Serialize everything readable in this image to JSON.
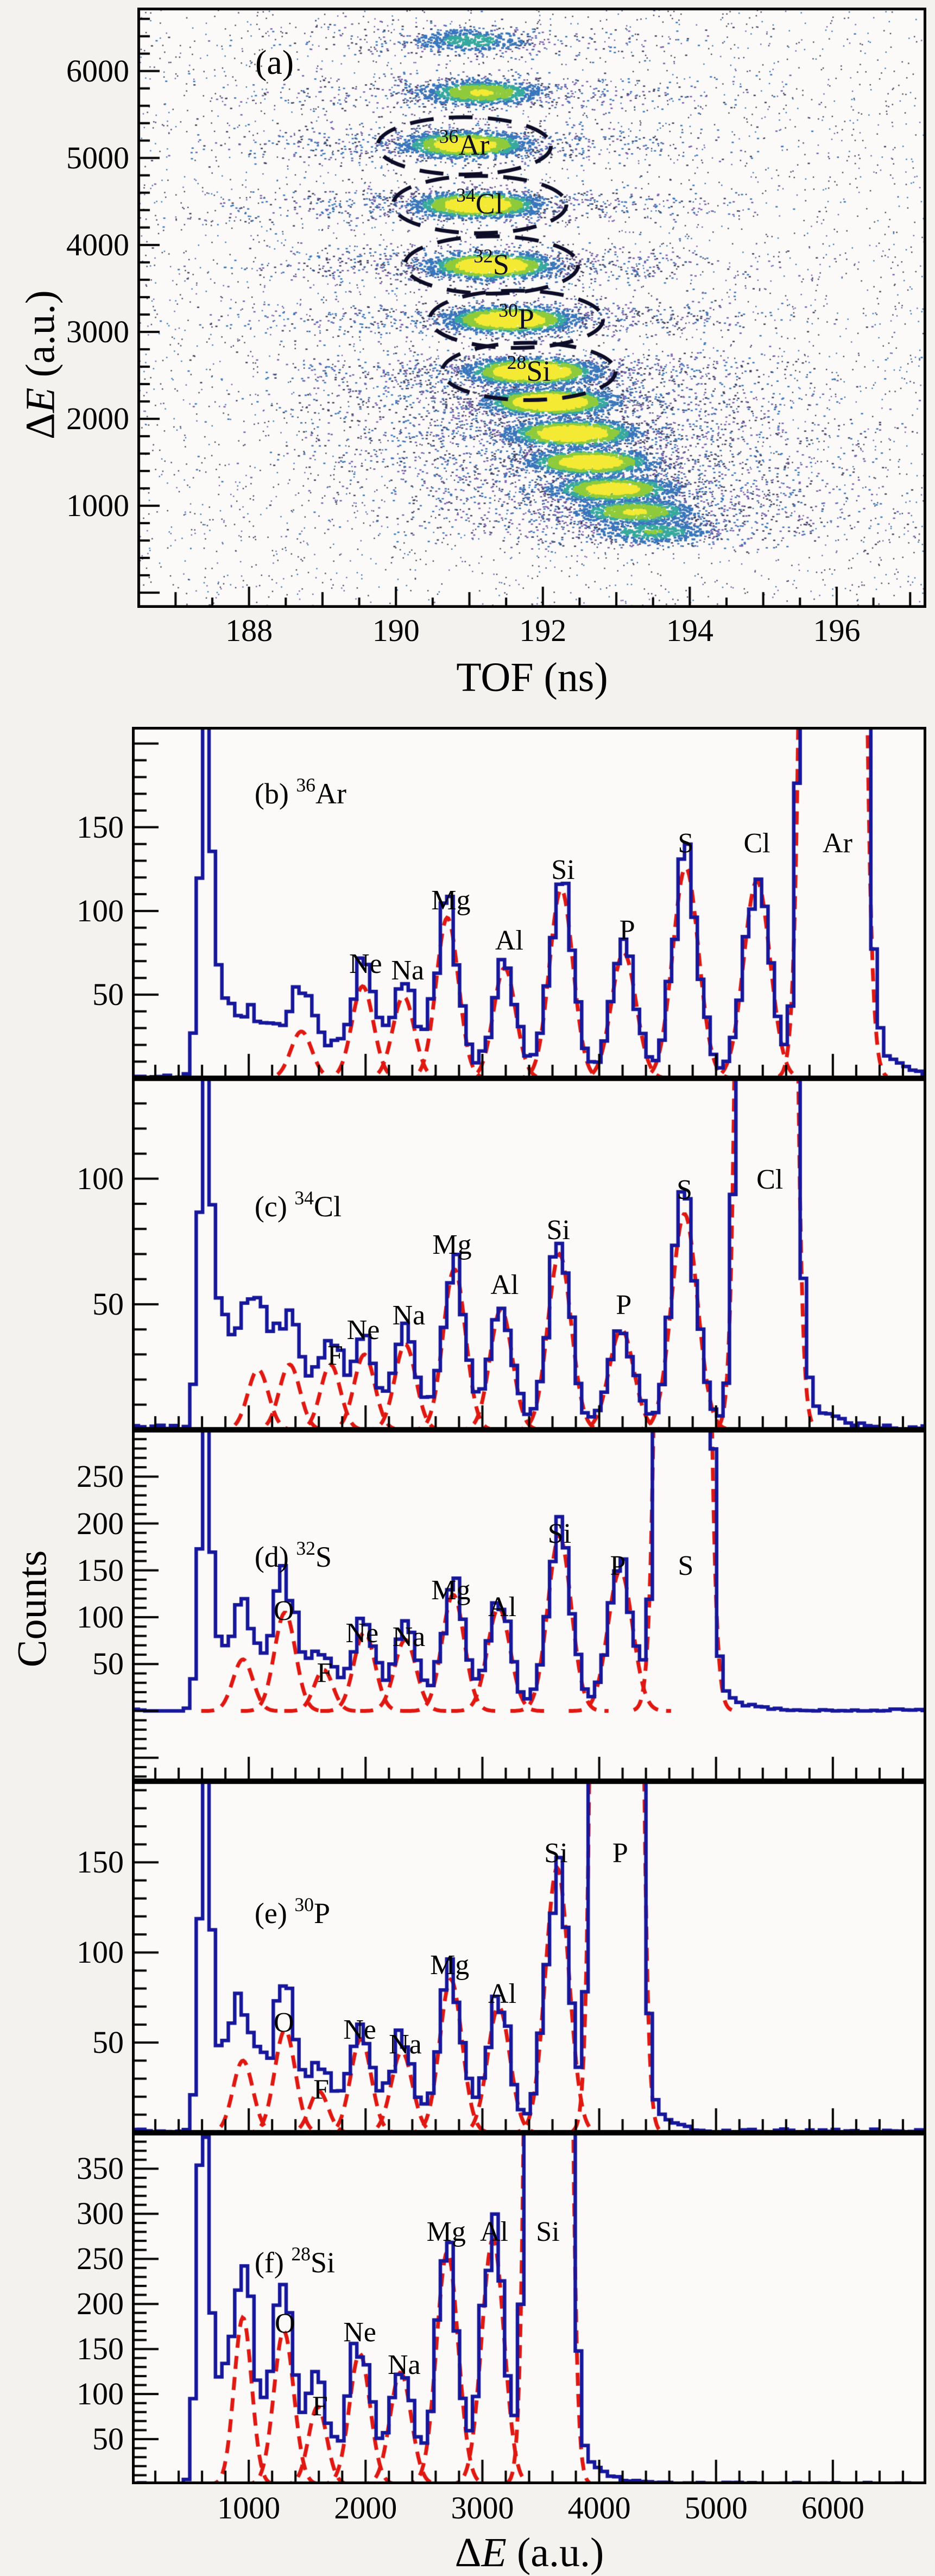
{
  "page": {
    "background": "#f3f2ef",
    "panel_background": "#fbfaf8"
  },
  "colors": {
    "histogram_line": "#17179b",
    "fit_line": "#e01812",
    "frame": "#000000",
    "dot_yellow": "#f4ea35",
    "dot_green": "#8fcb3c",
    "dot_teal": "#37a99e",
    "dot_blue": "#3a76bb",
    "dot_dark": "#42425f",
    "dot_purple": "#7a5fae",
    "ellipse": "#0d0d28"
  },
  "chart_data": {
    "panel_a": {
      "type": "heatmap",
      "tag": "(a)",
      "xlabel": "TOF (ns)",
      "ylabel_parts": {
        "delta": "Δ",
        "e": "E",
        "unit": " (a.u.)"
      },
      "xlim": [
        186.48,
        197.22
      ],
      "ylim": [
        -175,
        6730
      ],
      "xticks": [
        188,
        190,
        192,
        194,
        196
      ],
      "yticks": [
        1000,
        2000,
        3000,
        4000,
        5000,
        6000
      ],
      "tag_pos": {
        "tof": 188.1,
        "de": 6250
      },
      "bands": [
        {
          "de": 6350,
          "tof": 191.0,
          "intensity": 0.3
        },
        {
          "de": 5750,
          "tof": 191.15,
          "intensity": 0.55
        },
        {
          "de": 5150,
          "tof": 190.95,
          "intensity": 0.8
        },
        {
          "de": 4460,
          "tof": 191.1,
          "intensity": 0.85
        },
        {
          "de": 3760,
          "tof": 191.3,
          "intensity": 0.9
        },
        {
          "de": 3140,
          "tof": 191.55,
          "intensity": 0.9
        },
        {
          "de": 2540,
          "tof": 191.85,
          "intensity": 1.0
        },
        {
          "de": 2190,
          "tof": 192.1,
          "intensity": 0.95
        },
        {
          "de": 1830,
          "tof": 192.4,
          "intensity": 0.9
        },
        {
          "de": 1500,
          "tof": 192.65,
          "intensity": 0.8
        },
        {
          "de": 1190,
          "tof": 192.95,
          "intensity": 0.7
        },
        {
          "de": 930,
          "tof": 193.25,
          "intensity": 0.55
        },
        {
          "de": 700,
          "tof": 193.5,
          "intensity": 0.35
        }
      ],
      "ellipses": [
        {
          "mass": "36",
          "symbol": "Ar",
          "tof": 190.93,
          "de": 5140
        },
        {
          "mass": "34",
          "symbol": "Cl",
          "tof": 191.14,
          "de": 4465
        },
        {
          "mass": "32",
          "symbol": "S",
          "tof": 191.3,
          "de": 3770
        },
        {
          "mass": "30",
          "symbol": "P",
          "tof": 191.64,
          "de": 3145
        },
        {
          "mass": "28",
          "symbol": "Si",
          "tof": 191.81,
          "de": 2545
        }
      ],
      "ellipse_rx_ns": 1.18,
      "ellipse_ry_de": 330
    },
    "hist_axis": {
      "xlim": [
        0,
        6800
      ],
      "xticks": [
        1000,
        2000,
        3000,
        4000,
        5000,
        6000
      ],
      "xlabel_parts": {
        "delta": "Δ",
        "e": "E",
        "unit": " (a.u.)"
      },
      "ylabel": "Counts"
    },
    "histograms": [
      {
        "id": "b",
        "tag": "(b)",
        "mass": "36",
        "symbol": "Ar",
        "ymin": 0,
        "ymax": 210,
        "yticks": [
          50,
          100,
          150
        ],
        "tag_pos": {
          "x": 1050,
          "y": 182
        },
        "first": {
          "pos": 620,
          "amp": 193,
          "sig": 50
        },
        "decay": {
          "amp": 58,
          "lambda": 950
        },
        "tail": {
          "amp": 60,
          "lambda": 160
        },
        "peaks": [
          {
            "label": "",
            "pos": 1450,
            "amp": 28,
            "sig": 90
          },
          {
            "label": "Ne",
            "pos": 1975,
            "amp": 55,
            "sig": 92,
            "lx": 2000,
            "ly": 78
          },
          {
            "label": "Na",
            "pos": 2325,
            "amp": 49,
            "sig": 92,
            "lx": 2360,
            "ly": 74
          },
          {
            "label": "Mg",
            "pos": 2700,
            "amp": 96,
            "sig": 95,
            "lx": 2730,
            "ly": 116
          },
          {
            "label": "Al",
            "pos": 3190,
            "amp": 66,
            "sig": 95,
            "lx": 3230,
            "ly": 92
          },
          {
            "label": "Si",
            "pos": 3675,
            "amp": 113,
            "sig": 100,
            "lx": 3690,
            "ly": 134
          },
          {
            "label": "P",
            "pos": 4210,
            "amp": 75,
            "sig": 105,
            "lx": 4240,
            "ly": 98
          },
          {
            "label": "S",
            "pos": 4740,
            "amp": 126,
            "sig": 110,
            "lx": 4740,
            "ly": 150
          },
          {
            "label": "Cl",
            "pos": 5350,
            "amp": 118,
            "sig": 112,
            "lx": 5350,
            "ly": 150
          },
          {
            "label": "Ar",
            "pos": 6000,
            "amp": 8000,
            "sig": 110,
            "lx": 6040,
            "ly": 150
          }
        ]
      },
      {
        "id": "c",
        "tag": "(c)",
        "mass": "34",
        "symbol": "Cl",
        "ymin": 0,
        "ymax": 140,
        "yticks": [
          50,
          100
        ],
        "tag_pos": {
          "x": 1050,
          "y": 97
        },
        "first": {
          "pos": 620,
          "amp": 126,
          "sig": 48
        },
        "decay": {
          "amp": 55,
          "lambda": 700
        },
        "tail": {
          "amp": 22,
          "lambda": 220
        },
        "peaks": [
          {
            "label": "",
            "pos": 1080,
            "amp": 24,
            "sig": 88
          },
          {
            "label": "",
            "pos": 1350,
            "amp": 26,
            "sig": 88
          },
          {
            "label": "F",
            "pos": 1700,
            "amp": 26,
            "sig": 85,
            "lx": 1740,
            "ly": 36
          },
          {
            "label": "Ne",
            "pos": 1990,
            "amp": 30,
            "sig": 88,
            "lx": 1980,
            "ly": 46
          },
          {
            "label": "Na",
            "pos": 2340,
            "amp": 34,
            "sig": 90,
            "lx": 2370,
            "ly": 52
          },
          {
            "label": "Mg",
            "pos": 2760,
            "amp": 64,
            "sig": 95,
            "lx": 2740,
            "ly": 80
          },
          {
            "label": "Al",
            "pos": 3160,
            "amp": 48,
            "sig": 95,
            "lx": 3190,
            "ly": 64
          },
          {
            "label": "Si",
            "pos": 3660,
            "amp": 70,
            "sig": 100,
            "lx": 3650,
            "ly": 86
          },
          {
            "label": "P",
            "pos": 4190,
            "amp": 40,
            "sig": 105,
            "lx": 4210,
            "ly": 56
          },
          {
            "label": "S",
            "pos": 4730,
            "amp": 86,
            "sig": 110,
            "lx": 4730,
            "ly": 102
          },
          {
            "label": "Cl",
            "pos": 5430,
            "amp": 6000,
            "sig": 100,
            "lx": 5460,
            "ly": 106
          }
        ]
      },
      {
        "id": "d",
        "tag": "(d)",
        "mass": "32",
        "symbol": "S",
        "ymin": -75,
        "ymax": 300,
        "yticks": [
          50,
          100,
          150,
          200,
          250
        ],
        "tag_pos": {
          "x": 1050,
          "y": 186
        },
        "first": {
          "pos": 620,
          "amp": 290,
          "sig": 46
        },
        "decay": {
          "amp": 78,
          "lambda": 850
        },
        "tail": {
          "amp": 30,
          "lambda": 190
        },
        "peaks": [
          {
            "label": "",
            "pos": 950,
            "amp": 55,
            "sig": 85
          },
          {
            "label": "O",
            "pos": 1310,
            "amp": 105,
            "sig": 90,
            "lx": 1300,
            "ly": 124
          },
          {
            "label": "F",
            "pos": 1640,
            "amp": 44,
            "sig": 80,
            "lx": 1650,
            "ly": 58
          },
          {
            "label": "Ne",
            "pos": 1990,
            "amp": 84,
            "sig": 90,
            "lx": 1970,
            "ly": 100
          },
          {
            "label": "Na",
            "pos": 2340,
            "amp": 76,
            "sig": 92,
            "lx": 2370,
            "ly": 96
          },
          {
            "label": "Mg",
            "pos": 2750,
            "amp": 124,
            "sig": 95,
            "lx": 2730,
            "ly": 146
          },
          {
            "label": "Al",
            "pos": 3140,
            "amp": 110,
            "sig": 97,
            "lx": 3170,
            "ly": 128
          },
          {
            "label": "Si",
            "pos": 3660,
            "amp": 186,
            "sig": 100,
            "lx": 3660,
            "ly": 206
          },
          {
            "label": "P",
            "pos": 4180,
            "amp": 150,
            "sig": 105,
            "lx": 4160,
            "ly": 172
          },
          {
            "label": "S",
            "pos": 4715,
            "amp": 7000,
            "sig": 100,
            "lx": 4740,
            "ly": 172
          }
        ]
      },
      {
        "id": "e",
        "tag": "(e)",
        "mass": "30",
        "symbol": "P",
        "ymin": 0,
        "ymax": 195,
        "yticks": [
          50,
          100,
          150
        ],
        "tag_pos": {
          "x": 1050,
          "y": 133
        },
        "first": {
          "pos": 620,
          "amp": 190,
          "sig": 46
        },
        "decay": {
          "amp": 52,
          "lambda": 820
        },
        "tail": {
          "amp": 20,
          "lambda": 160
        },
        "peaks": [
          {
            "label": "",
            "pos": 950,
            "amp": 40,
            "sig": 85
          },
          {
            "label": "O",
            "pos": 1310,
            "amp": 57,
            "sig": 88,
            "lx": 1300,
            "ly": 70
          },
          {
            "label": "F",
            "pos": 1600,
            "amp": 23,
            "sig": 80,
            "lx": 1620,
            "ly": 33
          },
          {
            "label": "Ne",
            "pos": 1960,
            "amp": 52,
            "sig": 88,
            "lx": 1950,
            "ly": 66
          },
          {
            "label": "Na",
            "pos": 2310,
            "amp": 45,
            "sig": 90,
            "lx": 2340,
            "ly": 58
          },
          {
            "label": "Mg",
            "pos": 2730,
            "amp": 85,
            "sig": 95,
            "lx": 2720,
            "ly": 102
          },
          {
            "label": "Al",
            "pos": 3140,
            "amp": 70,
            "sig": 95,
            "lx": 3170,
            "ly": 86
          },
          {
            "label": "Si",
            "pos": 3640,
            "amp": 147,
            "sig": 100,
            "lx": 3630,
            "ly": 164
          },
          {
            "label": "P",
            "pos": 4150,
            "amp": 6000,
            "sig": 90,
            "lx": 4180,
            "ly": 164
          }
        ]
      },
      {
        "id": "f",
        "tag": "(f)",
        "mass": "28",
        "symbol": "Si",
        "ymin": 0,
        "ymax": 390,
        "yticks": [
          50,
          100,
          150,
          200,
          250,
          300,
          350
        ],
        "tag_pos": {
          "x": 1050,
          "y": 268
        },
        "first": {
          "pos": 600,
          "amp": 400,
          "sig": 44
        },
        "decay": {
          "amp": 130,
          "lambda": 650
        },
        "tail": {
          "amp": 45,
          "lambda": 180
        },
        "peaks": [
          {
            "label": "",
            "pos": 950,
            "amp": 185,
            "sig": 75
          },
          {
            "label": "O",
            "pos": 1300,
            "amp": 170,
            "sig": 85,
            "lx": 1310,
            "ly": 196
          },
          {
            "label": "F",
            "pos": 1590,
            "amp": 86,
            "sig": 78,
            "lx": 1610,
            "ly": 104
          },
          {
            "label": "Ne",
            "pos": 1950,
            "amp": 145,
            "sig": 88,
            "lx": 1950,
            "ly": 186
          },
          {
            "label": "Na",
            "pos": 2300,
            "amp": 124,
            "sig": 90,
            "lx": 2330,
            "ly": 150
          },
          {
            "label": "Mg",
            "pos": 2700,
            "amp": 258,
            "sig": 92,
            "lx": 2690,
            "ly": 298
          },
          {
            "label": "Al",
            "pos": 3090,
            "amp": 272,
            "sig": 95,
            "lx": 3100,
            "ly": 298
          },
          {
            "label": "Si",
            "pos": 3565,
            "amp": 9000,
            "sig": 85,
            "lx": 3560,
            "ly": 298
          }
        ]
      }
    ]
  }
}
